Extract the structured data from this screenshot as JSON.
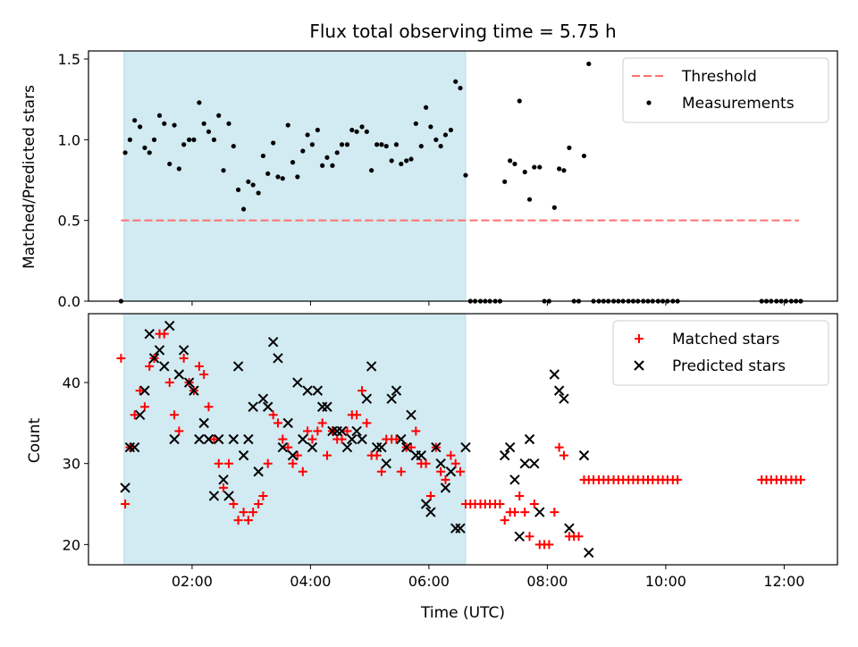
{
  "chart_data": [
    {
      "type": "scatter",
      "title": "Flux total observing time = 5.75 h",
      "xlabel": "",
      "ylabel": "Matched/Predicted stars",
      "xticks": [
        "02:00",
        "04:00",
        "06:00",
        "08:00",
        "10:00",
        "12:00"
      ],
      "xtick_values_hours": [
        2,
        4,
        6,
        8,
        10,
        12
      ],
      "xlim_hours": [
        0.25,
        12.9
      ],
      "ylim": [
        0,
        1.55
      ],
      "yticks": [
        "0.0",
        "0.5",
        "1.0",
        "1.5"
      ],
      "ytick_values": [
        0,
        0.5,
        1.0,
        1.5
      ],
      "shaded_span_hours": [
        0.85,
        6.62
      ],
      "shaded_color": "#add8e6",
      "legend_position": "top-right",
      "threshold": {
        "name": "Threshold",
        "y": 0.5,
        "x_range_hours": [
          0.8,
          12.25
        ],
        "color": "#ff7070"
      },
      "series": [
        {
          "name": "Measurements",
          "color": "#000000",
          "x": [
            0.8,
            0.87,
            0.95,
            1.03,
            1.12,
            1.2,
            1.28,
            1.36,
            1.45,
            1.53,
            1.62,
            1.7,
            1.78,
            1.86,
            1.95,
            2.03,
            2.12,
            2.2,
            2.28,
            2.37,
            2.45,
            2.53,
            2.62,
            2.7,
            2.78,
            2.87,
            2.95,
            3.03,
            3.12,
            3.2,
            3.28,
            3.37,
            3.45,
            3.53,
            3.62,
            3.7,
            3.78,
            3.87,
            3.95,
            4.03,
            4.12,
            4.2,
            4.28,
            4.37,
            4.45,
            4.53,
            4.62,
            4.7,
            4.78,
            4.87,
            4.95,
            5.03,
            5.12,
            5.2,
            5.28,
            5.37,
            5.45,
            5.53,
            5.62,
            5.7,
            5.78,
            5.87,
            5.95,
            6.03,
            6.12,
            6.2,
            6.28,
            6.37,
            6.45,
            6.53,
            6.62,
            6.7,
            6.78,
            6.87,
            6.95,
            7.03,
            7.12,
            7.2,
            7.28,
            7.37,
            7.45,
            7.53,
            7.62,
            7.7,
            7.78,
            7.87,
            7.95,
            8.03,
            8.12,
            8.2,
            8.28,
            8.37,
            8.45,
            8.53,
            8.62,
            8.7,
            8.78,
            8.87,
            8.95,
            9.03,
            9.12,
            9.2,
            9.28,
            9.37,
            9.45,
            9.53,
            9.62,
            9.7,
            9.78,
            9.87,
            9.95,
            10.03,
            10.12,
            10.2,
            11.62,
            11.7,
            11.78,
            11.87,
            11.95,
            12.03,
            12.12,
            12.2,
            12.28
          ],
          "values": [
            0.0,
            0.92,
            1.0,
            1.12,
            1.08,
            0.95,
            0.92,
            1.0,
            1.15,
            1.1,
            0.85,
            1.09,
            0.82,
            0.97,
            1.0,
            1.0,
            1.23,
            1.1,
            1.05,
            1.0,
            1.15,
            0.81,
            1.1,
            0.96,
            0.69,
            0.57,
            0.74,
            0.72,
            0.67,
            0.9,
            0.79,
            0.98,
            0.77,
            0.76,
            1.09,
            0.86,
            0.77,
            0.93,
            1.03,
            0.97,
            1.06,
            0.84,
            0.89,
            0.84,
            0.92,
            0.97,
            0.97,
            1.06,
            1.05,
            1.08,
            1.05,
            0.81,
            0.97,
            0.97,
            0.96,
            0.87,
            0.97,
            0.85,
            0.87,
            0.88,
            1.1,
            0.96,
            1.2,
            1.08,
            1.0,
            0.96,
            1.03,
            1.06,
            1.36,
            1.32,
            0.78,
            0.0,
            0.0,
            0.0,
            0.0,
            0.0,
            0.0,
            0.0,
            0.74,
            0.87,
            0.85,
            1.24,
            0.8,
            0.63,
            0.83,
            0.83,
            0.0,
            0.0,
            0.58,
            0.82,
            0.81,
            0.95,
            0.0,
            0.0,
            0.9,
            1.47,
            0.0,
            0.0,
            0.0,
            0.0,
            0.0,
            0.0,
            0.0,
            0.0,
            0.0,
            0.0,
            0.0,
            0.0,
            0.0,
            0.0,
            0.0,
            0.0,
            0.0,
            0.0,
            0.0,
            0.0,
            0.0,
            0.0,
            0.0,
            0.0,
            0.0,
            0.0,
            0.0
          ]
        }
      ]
    },
    {
      "type": "scatter",
      "title": "",
      "xlabel": "Time (UTC)",
      "ylabel": "Count",
      "xticks": [
        "02:00",
        "04:00",
        "06:00",
        "08:00",
        "10:00",
        "12:00"
      ],
      "xtick_values_hours": [
        2,
        4,
        6,
        8,
        10,
        12
      ],
      "xlim_hours": [
        0.25,
        12.9
      ],
      "ylim": [
        17.5,
        48.5
      ],
      "yticks": [
        "20",
        "30",
        "40"
      ],
      "ytick_values": [
        20,
        30,
        40
      ],
      "shaded_span_hours": [
        0.85,
        6.62
      ],
      "shaded_color": "#add8e6",
      "legend_position": "top-right",
      "series": [
        {
          "name": "Matched stars",
          "marker": "plus",
          "color": "#ff0000",
          "x": [
            0.8,
            0.87,
            0.95,
            1.03,
            1.12,
            1.2,
            1.28,
            1.36,
            1.45,
            1.53,
            1.62,
            1.7,
            1.78,
            1.86,
            1.95,
            2.03,
            2.12,
            2.2,
            2.28,
            2.37,
            2.45,
            2.53,
            2.62,
            2.7,
            2.78,
            2.87,
            2.95,
            3.03,
            3.12,
            3.2,
            3.28,
            3.37,
            3.45,
            3.53,
            3.62,
            3.7,
            3.78,
            3.87,
            3.95,
            4.03,
            4.12,
            4.2,
            4.28,
            4.37,
            4.45,
            4.53,
            4.62,
            4.7,
            4.78,
            4.87,
            4.95,
            5.03,
            5.12,
            5.2,
            5.28,
            5.37,
            5.45,
            5.53,
            5.62,
            5.7,
            5.78,
            5.87,
            5.95,
            6.03,
            6.12,
            6.2,
            6.28,
            6.37,
            6.45,
            6.53,
            6.62,
            6.7,
            6.78,
            6.87,
            6.95,
            7.03,
            7.12,
            7.2,
            7.28,
            7.37,
            7.45,
            7.53,
            7.62,
            7.7,
            7.78,
            7.87,
            7.95,
            8.03,
            8.12,
            8.2,
            8.28,
            8.37,
            8.45,
            8.53,
            8.62,
            8.7,
            8.78,
            8.87,
            8.95,
            9.03,
            9.12,
            9.2,
            9.28,
            9.37,
            9.45,
            9.53,
            9.62,
            9.7,
            9.78,
            9.87,
            9.95,
            10.03,
            10.12,
            10.2,
            11.62,
            11.7,
            11.78,
            11.87,
            11.95,
            12.03,
            12.12,
            12.2,
            12.28
          ],
          "values": [
            43,
            25,
            32,
            36,
            39,
            37,
            42,
            43,
            46,
            46,
            40,
            36,
            34,
            43,
            40,
            39,
            42,
            41,
            37,
            33,
            30,
            27,
            30,
            25,
            23,
            24,
            23,
            24,
            25,
            26,
            30,
            36,
            35,
            33,
            32,
            30,
            31,
            29,
            34,
            33,
            34,
            35,
            31,
            34,
            33,
            33,
            34,
            36,
            36,
            39,
            35,
            31,
            31,
            29,
            33,
            33,
            33,
            29,
            32,
            32,
            34,
            30,
            30,
            26,
            32,
            29,
            28,
            31,
            30,
            29,
            25,
            25,
            25,
            25,
            25,
            25,
            25,
            25,
            23,
            24,
            24,
            26,
            24,
            21,
            25,
            20,
            20,
            20,
            24,
            32,
            31,
            21,
            21,
            21,
            28,
            28,
            28,
            28,
            28,
            28,
            28,
            28,
            28,
            28,
            28,
            28,
            28,
            28,
            28,
            28,
            28,
            28,
            28,
            28,
            28,
            28,
            28,
            28,
            28,
            28,
            28,
            28,
            28
          ]
        },
        {
          "name": "Predicted stars",
          "marker": "x",
          "color": "#000000",
          "x": [
            0.87,
            0.95,
            1.03,
            1.12,
            1.2,
            1.28,
            1.36,
            1.45,
            1.53,
            1.62,
            1.7,
            1.78,
            1.86,
            1.95,
            2.03,
            2.12,
            2.2,
            2.28,
            2.37,
            2.45,
            2.53,
            2.62,
            2.7,
            2.78,
            2.87,
            2.95,
            3.03,
            3.12,
            3.2,
            3.28,
            3.37,
            3.45,
            3.53,
            3.62,
            3.7,
            3.78,
            3.87,
            3.95,
            4.03,
            4.12,
            4.2,
            4.28,
            4.37,
            4.45,
            4.53,
            4.62,
            4.7,
            4.78,
            4.87,
            4.95,
            5.03,
            5.12,
            5.2,
            5.28,
            5.37,
            5.45,
            5.53,
            5.62,
            5.7,
            5.78,
            5.87,
            5.95,
            6.03,
            6.12,
            6.2,
            6.28,
            6.37,
            6.45,
            6.53,
            6.62,
            7.28,
            7.37,
            7.45,
            7.53,
            7.62,
            7.7,
            7.78,
            7.87,
            8.12,
            8.2,
            8.28,
            8.37,
            8.62,
            8.7
          ],
          "values": [
            27,
            32,
            32,
            36,
            39,
            46,
            43,
            44,
            42,
            47,
            33,
            41,
            44,
            40,
            39,
            33,
            35,
            33,
            26,
            33,
            28,
            26,
            33,
            42,
            31,
            33,
            37,
            29,
            38,
            37,
            45,
            43,
            32,
            35,
            31,
            40,
            33,
            39,
            32,
            39,
            37,
            37,
            34,
            34,
            34,
            32,
            33,
            34,
            33,
            38,
            42,
            32,
            32,
            30,
            38,
            39,
            33,
            32,
            36,
            31,
            31,
            25,
            24,
            32,
            30,
            27,
            29,
            22,
            22,
            32,
            31,
            32,
            28,
            21,
            30,
            33,
            30,
            24,
            41,
            39,
            38,
            22,
            31,
            19
          ]
        }
      ]
    }
  ]
}
